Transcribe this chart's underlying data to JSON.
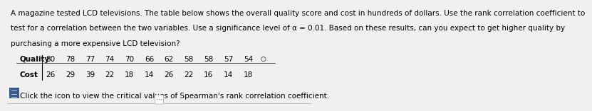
{
  "paragraph": "A magazine tested LCD televisions. The table below shows the overall quality score and cost in hundreds of dollars. Use the rank correlation coefficient to\ntest for a correlation between the two variables. Use a significance level of α = 0.01. Based on these results, can you expect to get higher quality by\npurchasing a more expensive LCD television?",
  "quality_label": "Quality",
  "cost_label": "Cost",
  "quality_values": [
    "80",
    "78",
    "77",
    "74",
    "70",
    "66",
    "62",
    "58",
    "58",
    "57",
    "54"
  ],
  "cost_values": [
    "26",
    "29",
    "39",
    "22",
    "18",
    "14",
    "26",
    "22",
    "16",
    "14",
    "18"
  ],
  "footer_text": "Click the icon to view the critical values of Spearman's rank correlation coefficient.",
  "bg_color": "#f0f0f0",
  "text_color": "#000000",
  "font_size_body": 7.5,
  "font_size_table": 7.5,
  "icon_color": "#3a5a8c"
}
